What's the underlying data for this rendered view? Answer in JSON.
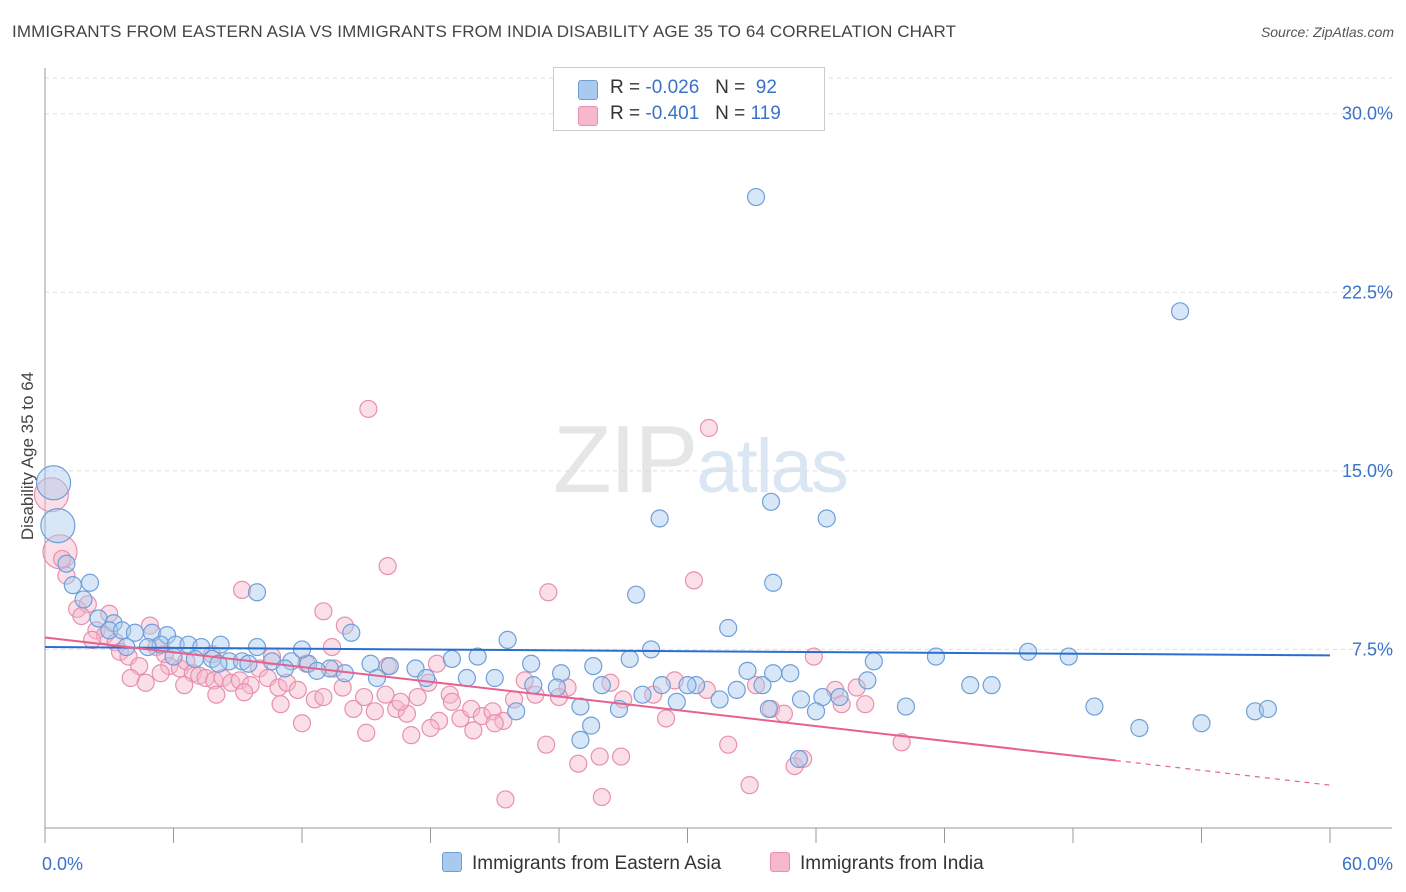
{
  "title": "IMMIGRANTS FROM EASTERN ASIA VS IMMIGRANTS FROM INDIA DISABILITY AGE 35 TO 64 CORRELATION CHART",
  "source": "Source: ZipAtlas.com",
  "watermark": {
    "zip": "ZIP",
    "atlas": "atlas"
  },
  "legend": {
    "rows": [
      {
        "r_label": "R =",
        "r_value": "-0.026",
        "n_label": "N =",
        "n_value": "92"
      },
      {
        "r_label": "R =",
        "r_value": "-0.401",
        "n_label": "N =",
        "n_value": "119"
      }
    ]
  },
  "colors": {
    "blue_fill": "#a9c9ee",
    "blue_stroke": "#6f9fd8",
    "blue_line": "#2b6fce",
    "pink_fill": "#f5b8cc",
    "pink_stroke": "#e890ad",
    "pink_line": "#e8608e",
    "axis_label": "#3a72c9"
  },
  "chart_data": {
    "type": "scatter",
    "title": "IMMIGRANTS FROM EASTERN ASIA VS IMMIGRANTS FROM INDIA DISABILITY AGE 35 TO 64 CORRELATION CHART",
    "xlabel": "",
    "ylabel": "Disability Age 35 to 64",
    "xlim": [
      0,
      60
    ],
    "ylim": [
      0,
      31.5
    ],
    "x_tick_labels": [
      "0.0%",
      "60.0%"
    ],
    "y_ticks": [
      7.5,
      15.0,
      22.5,
      30.0
    ],
    "y_tick_labels": [
      "7.5%",
      "15.0%",
      "22.5%",
      "30.0%"
    ],
    "grid": true,
    "legend_position": "top-center",
    "series": [
      {
        "name": "Immigrants from Eastern Asia",
        "color": "#a9c9ee",
        "trend": {
          "x": [
            0,
            60
          ],
          "y": [
            7.6,
            7.25
          ],
          "dashed_from": null
        },
        "points": [
          {
            "x": 0.4,
            "y": 14.5,
            "big": true
          },
          {
            "x": 0.6,
            "y": 12.7,
            "big": true
          },
          {
            "x": 1.0,
            "y": 11.1
          },
          {
            "x": 1.3,
            "y": 10.2
          },
          {
            "x": 2.1,
            "y": 10.3
          },
          {
            "x": 1.8,
            "y": 9.6
          },
          {
            "x": 2.5,
            "y": 8.8
          },
          {
            "x": 3.2,
            "y": 8.6
          },
          {
            "x": 3.0,
            "y": 8.3
          },
          {
            "x": 3.6,
            "y": 8.3
          },
          {
            "x": 4.2,
            "y": 8.2
          },
          {
            "x": 5.0,
            "y": 8.2
          },
          {
            "x": 5.7,
            "y": 8.1
          },
          {
            "x": 5.4,
            "y": 7.7
          },
          {
            "x": 6.1,
            "y": 7.7
          },
          {
            "x": 6.7,
            "y": 7.7
          },
          {
            "x": 7.3,
            "y": 7.6
          },
          {
            "x": 8.2,
            "y": 7.7
          },
          {
            "x": 7.8,
            "y": 7.1
          },
          {
            "x": 8.6,
            "y": 7.0
          },
          {
            "x": 9.2,
            "y": 7.0
          },
          {
            "x": 9.9,
            "y": 7.6
          },
          {
            "x": 10.6,
            "y": 7.0
          },
          {
            "x": 11.5,
            "y": 7.0
          },
          {
            "x": 12.3,
            "y": 6.9
          },
          {
            "x": 12.0,
            "y": 7.5
          },
          {
            "x": 13.3,
            "y": 6.7
          },
          {
            "x": 14.3,
            "y": 8.2
          },
          {
            "x": 15.2,
            "y": 6.9
          },
          {
            "x": 16.1,
            "y": 6.8
          },
          {
            "x": 17.3,
            "y": 6.7
          },
          {
            "x": 19.0,
            "y": 7.1
          },
          {
            "x": 20.2,
            "y": 7.2
          },
          {
            "x": 21.6,
            "y": 7.9
          },
          {
            "x": 22.7,
            "y": 6.9
          },
          {
            "x": 24.1,
            "y": 6.5
          },
          {
            "x": 25.6,
            "y": 6.8
          },
          {
            "x": 27.3,
            "y": 7.1
          },
          {
            "x": 28.3,
            "y": 7.5
          },
          {
            "x": 28.8,
            "y": 6.0
          },
          {
            "x": 30.4,
            "y": 6.0
          },
          {
            "x": 31.5,
            "y": 5.4
          },
          {
            "x": 32.3,
            "y": 5.8
          },
          {
            "x": 33.5,
            "y": 6.0
          },
          {
            "x": 34.0,
            "y": 6.5
          },
          {
            "x": 34.8,
            "y": 6.5
          },
          {
            "x": 35.3,
            "y": 5.4
          },
          {
            "x": 36.3,
            "y": 5.5
          },
          {
            "x": 37.1,
            "y": 5.5
          },
          {
            "x": 38.4,
            "y": 6.2
          },
          {
            "x": 38.7,
            "y": 7.0
          },
          {
            "x": 40.2,
            "y": 5.1
          },
          {
            "x": 41.6,
            "y": 7.2
          },
          {
            "x": 43.2,
            "y": 6.0
          },
          {
            "x": 44.2,
            "y": 6.0
          },
          {
            "x": 45.9,
            "y": 7.4
          },
          {
            "x": 47.8,
            "y": 7.2
          },
          {
            "x": 49.0,
            "y": 5.1
          },
          {
            "x": 51.1,
            "y": 4.2
          },
          {
            "x": 54.0,
            "y": 4.4
          },
          {
            "x": 56.5,
            "y": 4.9
          },
          {
            "x": 57.1,
            "y": 5.0
          },
          {
            "x": 3.8,
            "y": 7.6
          },
          {
            "x": 4.8,
            "y": 7.6
          },
          {
            "x": 6.0,
            "y": 7.2
          },
          {
            "x": 7.0,
            "y": 7.1
          },
          {
            "x": 8.1,
            "y": 6.9
          },
          {
            "x": 9.5,
            "y": 6.9
          },
          {
            "x": 11.2,
            "y": 6.7
          },
          {
            "x": 12.7,
            "y": 6.6
          },
          {
            "x": 14.0,
            "y": 6.5
          },
          {
            "x": 15.5,
            "y": 6.3
          },
          {
            "x": 17.8,
            "y": 6.3
          },
          {
            "x": 19.7,
            "y": 6.3
          },
          {
            "x": 21.0,
            "y": 6.3
          },
          {
            "x": 22.8,
            "y": 6.0
          },
          {
            "x": 23.9,
            "y": 5.9
          },
          {
            "x": 25.0,
            "y": 5.1
          },
          {
            "x": 25.5,
            "y": 4.3
          },
          {
            "x": 26.8,
            "y": 5.0
          },
          {
            "x": 27.9,
            "y": 5.6
          },
          {
            "x": 29.5,
            "y": 5.3
          },
          {
            "x": 30.0,
            "y": 6.0
          },
          {
            "x": 32.8,
            "y": 6.6
          },
          {
            "x": 33.8,
            "y": 5.0
          },
          {
            "x": 36.0,
            "y": 4.9
          },
          {
            "x": 22.0,
            "y": 4.9
          },
          {
            "x": 25.0,
            "y": 3.7
          },
          {
            "x": 28.7,
            "y": 13.0
          },
          {
            "x": 33.9,
            "y": 13.7
          },
          {
            "x": 34.0,
            "y": 10.3
          },
          {
            "x": 36.5,
            "y": 13.0
          },
          {
            "x": 31.9,
            "y": 8.4
          },
          {
            "x": 26.0,
            "y": 6.0
          },
          {
            "x": 27.6,
            "y": 9.8
          },
          {
            "x": 33.2,
            "y": 26.5
          },
          {
            "x": 53.0,
            "y": 21.7
          },
          {
            "x": 9.9,
            "y": 9.9
          },
          {
            "x": 35.2,
            "y": 2.9
          }
        ]
      },
      {
        "name": "Immigrants from India",
        "color": "#f5b8cc",
        "trend": {
          "x": [
            0,
            60
          ],
          "y": [
            8.0,
            1.8
          ],
          "dashed_from": 50
        },
        "points": [
          {
            "x": 0.3,
            "y": 14.0,
            "big": true
          },
          {
            "x": 0.7,
            "y": 11.6,
            "big": true
          },
          {
            "x": 0.8,
            "y": 11.3
          },
          {
            "x": 1.0,
            "y": 10.6
          },
          {
            "x": 1.5,
            "y": 9.2
          },
          {
            "x": 2.0,
            "y": 9.4
          },
          {
            "x": 1.7,
            "y": 8.9
          },
          {
            "x": 2.4,
            "y": 8.3
          },
          {
            "x": 2.8,
            "y": 8.1
          },
          {
            "x": 3.3,
            "y": 7.8
          },
          {
            "x": 3.5,
            "y": 7.4
          },
          {
            "x": 3.9,
            "y": 7.2
          },
          {
            "x": 4.4,
            "y": 6.8
          },
          {
            "x": 4.9,
            "y": 8.5
          },
          {
            "x": 5.2,
            "y": 7.6
          },
          {
            "x": 5.6,
            "y": 7.3
          },
          {
            "x": 5.8,
            "y": 6.8
          },
          {
            "x": 6.3,
            "y": 6.7
          },
          {
            "x": 6.6,
            "y": 7.0
          },
          {
            "x": 6.9,
            "y": 6.5
          },
          {
            "x": 7.2,
            "y": 6.4
          },
          {
            "x": 7.5,
            "y": 6.3
          },
          {
            "x": 7.9,
            "y": 6.2
          },
          {
            "x": 8.3,
            "y": 6.3
          },
          {
            "x": 8.7,
            "y": 6.1
          },
          {
            "x": 9.1,
            "y": 6.2
          },
          {
            "x": 9.6,
            "y": 6.0
          },
          {
            "x": 10.0,
            "y": 6.7
          },
          {
            "x": 10.4,
            "y": 6.3
          },
          {
            "x": 10.9,
            "y": 5.9
          },
          {
            "x": 11.3,
            "y": 6.1
          },
          {
            "x": 11.8,
            "y": 5.8
          },
          {
            "x": 12.2,
            "y": 6.9
          },
          {
            "x": 12.6,
            "y": 5.4
          },
          {
            "x": 13.0,
            "y": 5.5
          },
          {
            "x": 13.5,
            "y": 6.7
          },
          {
            "x": 13.9,
            "y": 5.9
          },
          {
            "x": 14.4,
            "y": 5.0
          },
          {
            "x": 14.9,
            "y": 5.5
          },
          {
            "x": 15.4,
            "y": 4.9
          },
          {
            "x": 15.9,
            "y": 5.6
          },
          {
            "x": 16.4,
            "y": 5.0
          },
          {
            "x": 16.9,
            "y": 4.8
          },
          {
            "x": 17.4,
            "y": 5.5
          },
          {
            "x": 17.9,
            "y": 6.1
          },
          {
            "x": 18.4,
            "y": 4.5
          },
          {
            "x": 18.9,
            "y": 5.6
          },
          {
            "x": 19.4,
            "y": 4.6
          },
          {
            "x": 19.9,
            "y": 5.0
          },
          {
            "x": 20.4,
            "y": 4.7
          },
          {
            "x": 20.9,
            "y": 4.9
          },
          {
            "x": 21.4,
            "y": 4.5
          },
          {
            "x": 21.9,
            "y": 5.4
          },
          {
            "x": 22.4,
            "y": 6.2
          },
          {
            "x": 22.9,
            "y": 5.6
          },
          {
            "x": 23.4,
            "y": 3.5
          },
          {
            "x": 24.4,
            "y": 5.9
          },
          {
            "x": 24.9,
            "y": 2.7
          },
          {
            "x": 25.9,
            "y": 3.0
          },
          {
            "x": 26.4,
            "y": 6.1
          },
          {
            "x": 26.9,
            "y": 3.0
          },
          {
            "x": 28.4,
            "y": 5.6
          },
          {
            "x": 29.4,
            "y": 6.2
          },
          {
            "x": 30.3,
            "y": 10.4
          },
          {
            "x": 30.9,
            "y": 5.8
          },
          {
            "x": 31.9,
            "y": 3.5
          },
          {
            "x": 32.9,
            "y": 1.8
          },
          {
            "x": 33.9,
            "y": 5.0
          },
          {
            "x": 35.0,
            "y": 2.6
          },
          {
            "x": 35.9,
            "y": 7.2
          },
          {
            "x": 36.9,
            "y": 5.8
          },
          {
            "x": 37.2,
            "y": 5.2
          },
          {
            "x": 37.9,
            "y": 5.9
          },
          {
            "x": 38.3,
            "y": 5.2
          },
          {
            "x": 40.0,
            "y": 3.6
          },
          {
            "x": 3.0,
            "y": 9.0
          },
          {
            "x": 4.0,
            "y": 6.3
          },
          {
            "x": 4.7,
            "y": 6.1
          },
          {
            "x": 6.5,
            "y": 6.0
          },
          {
            "x": 8.0,
            "y": 5.6
          },
          {
            "x": 9.3,
            "y": 5.7
          },
          {
            "x": 11.0,
            "y": 5.2
          },
          {
            "x": 12.0,
            "y": 4.4
          },
          {
            "x": 13.0,
            "y": 9.1
          },
          {
            "x": 13.4,
            "y": 7.6
          },
          {
            "x": 14.0,
            "y": 8.5
          },
          {
            "x": 15.0,
            "y": 4.0
          },
          {
            "x": 16.0,
            "y": 6.8
          },
          {
            "x": 16.6,
            "y": 5.3
          },
          {
            "x": 17.1,
            "y": 3.9
          },
          {
            "x": 18.0,
            "y": 4.2
          },
          {
            "x": 19.0,
            "y": 5.3
          },
          {
            "x": 20.0,
            "y": 4.1
          },
          {
            "x": 21.0,
            "y": 4.4
          },
          {
            "x": 21.5,
            "y": 1.2
          },
          {
            "x": 24.0,
            "y": 5.5
          },
          {
            "x": 26.0,
            "y": 1.3
          },
          {
            "x": 29.0,
            "y": 4.6
          },
          {
            "x": 31.0,
            "y": 16.8
          },
          {
            "x": 15.1,
            "y": 17.6
          },
          {
            "x": 16.0,
            "y": 11.0
          },
          {
            "x": 23.5,
            "y": 9.9
          },
          {
            "x": 9.2,
            "y": 10.0
          },
          {
            "x": 34.5,
            "y": 4.8
          },
          {
            "x": 35.4,
            "y": 2.9
          },
          {
            "x": 10.6,
            "y": 7.2
          },
          {
            "x": 7.8,
            "y": 7.3
          },
          {
            "x": 5.4,
            "y": 6.5
          },
          {
            "x": 2.2,
            "y": 7.9
          },
          {
            "x": 18.3,
            "y": 6.9
          },
          {
            "x": 27.0,
            "y": 5.4
          },
          {
            "x": 33.2,
            "y": 6.0
          }
        ]
      }
    ]
  },
  "bottom_legend": [
    "Immigrants from Eastern Asia",
    "Immigrants from India"
  ],
  "ylabel": "Disability Age 35 to 64"
}
